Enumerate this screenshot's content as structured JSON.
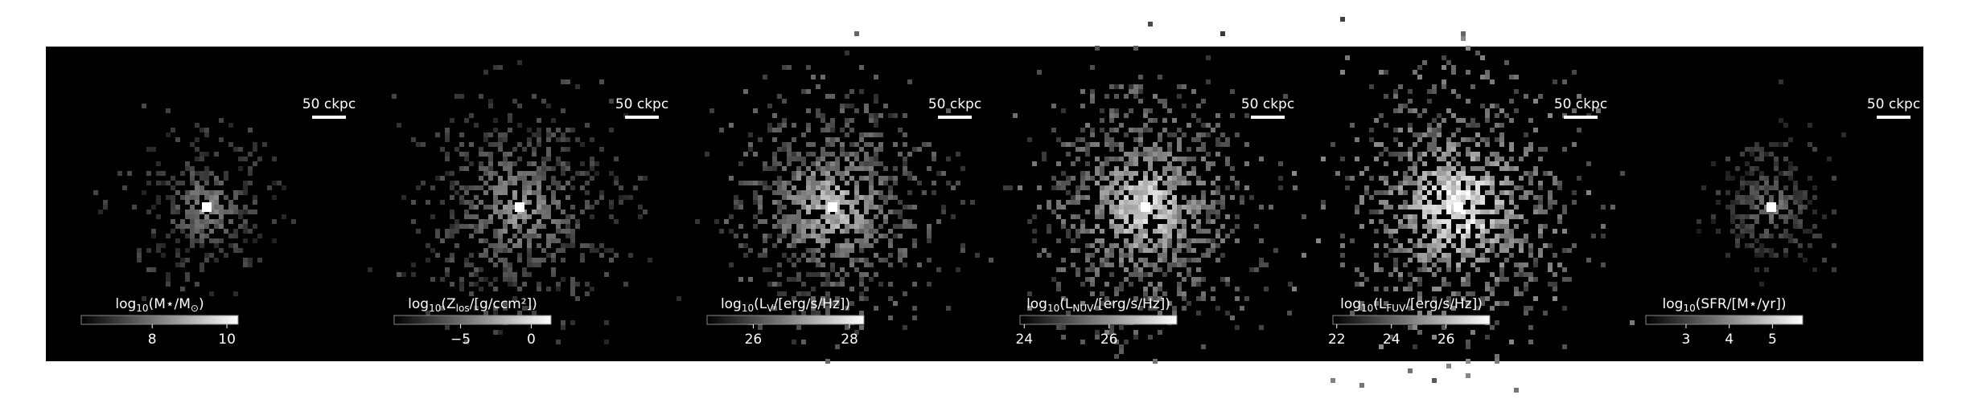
{
  "panels": [
    {
      "scale_bar": "50 ckpc",
      "colorbar": {
        "label": [
          "log",
          "10",
          "(M⋆/M",
          "⊙",
          ")"
        ],
        "range": [
          6.1,
          10.3
        ],
        "ticks": [
          8,
          10
        ]
      }
    },
    {
      "scale_bar": "50 ckpc",
      "colorbar": {
        "label": [
          "log",
          "10",
          "(Z",
          "los",
          "/[g/ccm²])"
        ],
        "range": [
          -9.7,
          1.4
        ],
        "ticks": [
          {
            "value": -5,
            "label": "−5"
          },
          0
        ]
      }
    },
    {
      "scale_bar": "50 ckpc",
      "colorbar": {
        "label": [
          "log",
          "10",
          "(L",
          "V",
          "/[erg/s/Hz])"
        ],
        "range": [
          25.04,
          28.3
        ],
        "ticks": [
          26,
          28
        ]
      }
    },
    {
      "scale_bar": "50 ckpc",
      "colorbar": {
        "label": [
          "log",
          "10",
          "(L",
          "NUV",
          "/[erg/s/Hz])"
        ],
        "range": [
          23.9,
          27.6
        ],
        "ticks": [
          24,
          26
        ]
      }
    },
    {
      "scale_bar": "50 ckpc",
      "colorbar": {
        "label": [
          "log",
          "10",
          "(L",
          "FUV",
          "/[erg/s/Hz])"
        ],
        "range": [
          21.86,
          27.6
        ],
        "ticks": [
          22,
          24,
          26
        ]
      }
    },
    {
      "scale_bar": "50 ckpc",
      "colorbar": {
        "label": [
          "log",
          "10",
          "(SFR/[M⋆/yr])"
        ],
        "range": [
          2.07,
          5.7
        ],
        "ticks": [
          3,
          4,
          5
        ]
      }
    }
  ]
}
